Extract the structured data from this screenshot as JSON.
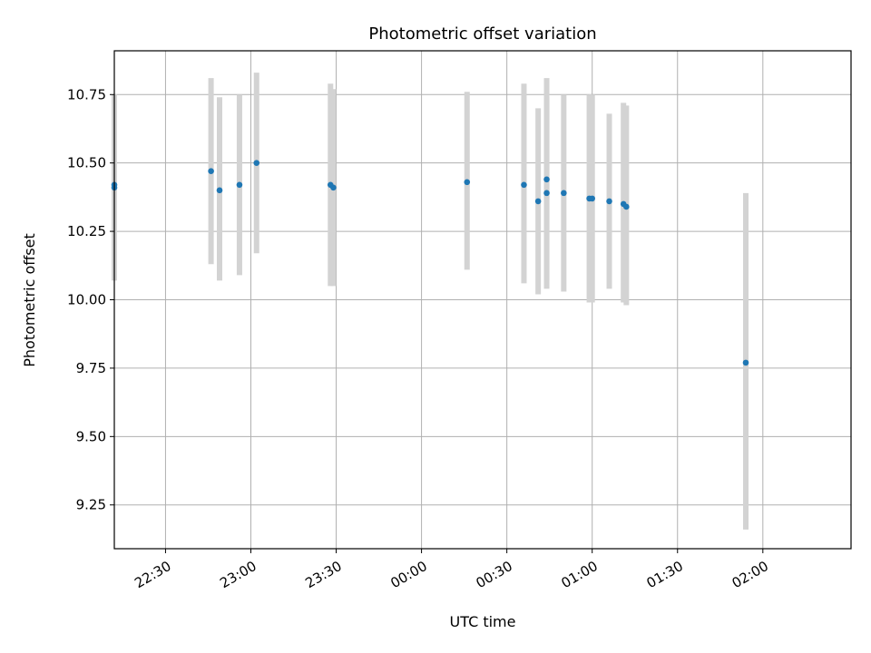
{
  "chart_data": {
    "type": "scatter",
    "title": "Photometric offset variation",
    "xlabel": "UTC time",
    "ylabel": "Photometric offset",
    "x_unit": "hh:mm UTC",
    "xlim": [
      "22:12",
      "02:31"
    ],
    "ylim": [
      9.09,
      10.91
    ],
    "grid": true,
    "x_ticks": [
      "22:30",
      "23:00",
      "23:30",
      "00:00",
      "00:30",
      "01:00",
      "01:30",
      "02:00"
    ],
    "y_ticks": [
      "9.25",
      "9.50",
      "9.75",
      "10.00",
      "10.25",
      "10.50",
      "10.75"
    ],
    "colors": {
      "point": "#1f77b4",
      "errorbar": "#d3d3d3",
      "grid": "#b0b0b0"
    },
    "series": [
      {
        "points": [
          {
            "x": "22:12",
            "y": 10.41,
            "err_lo": 10.07,
            "err_hi": 10.75
          },
          {
            "x": "22:12",
            "y": 10.42,
            "err_lo": 10.08,
            "err_hi": 10.75
          },
          {
            "x": "22:46",
            "y": 10.47,
            "err_lo": 10.13,
            "err_hi": 10.81
          },
          {
            "x": "22:49",
            "y": 10.4,
            "err_lo": 10.07,
            "err_hi": 10.74
          },
          {
            "x": "22:56",
            "y": 10.42,
            "err_lo": 10.09,
            "err_hi": 10.75
          },
          {
            "x": "23:02",
            "y": 10.5,
            "err_lo": 10.17,
            "err_hi": 10.83
          },
          {
            "x": "23:28",
            "y": 10.42,
            "err_lo": 10.05,
            "err_hi": 10.79
          },
          {
            "x": "23:29",
            "y": 10.41,
            "err_lo": 10.05,
            "err_hi": 10.77
          },
          {
            "x": "00:16",
            "y": 10.43,
            "err_lo": 10.11,
            "err_hi": 10.76
          },
          {
            "x": "00:36",
            "y": 10.42,
            "err_lo": 10.06,
            "err_hi": 10.79
          },
          {
            "x": "00:41",
            "y": 10.36,
            "err_lo": 10.02,
            "err_hi": 10.7
          },
          {
            "x": "00:44",
            "y": 10.44,
            "err_lo": 10.07,
            "err_hi": 10.81
          },
          {
            "x": "00:44",
            "y": 10.39,
            "err_lo": 10.04,
            "err_hi": 10.74
          },
          {
            "x": "00:50",
            "y": 10.39,
            "err_lo": 10.03,
            "err_hi": 10.75
          },
          {
            "x": "00:59",
            "y": 10.37,
            "err_lo": 9.99,
            "err_hi": 10.75
          },
          {
            "x": "01:00",
            "y": 10.37,
            "err_lo": 9.99,
            "err_hi": 10.75
          },
          {
            "x": "01:06",
            "y": 10.36,
            "err_lo": 10.04,
            "err_hi": 10.68
          },
          {
            "x": "01:11",
            "y": 10.35,
            "err_lo": 9.99,
            "err_hi": 10.72
          },
          {
            "x": "01:12",
            "y": 10.34,
            "err_lo": 9.98,
            "err_hi": 10.71
          },
          {
            "x": "01:54",
            "y": 9.77,
            "err_lo": 9.16,
            "err_hi": 10.39
          }
        ]
      }
    ]
  }
}
